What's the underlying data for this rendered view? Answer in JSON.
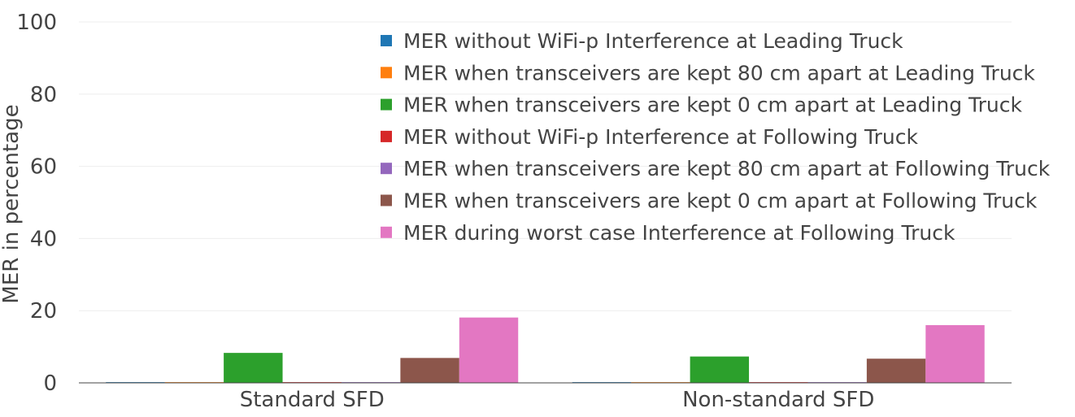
{
  "chart_data": {
    "type": "bar",
    "title": "",
    "xlabel": "",
    "ylabel": "MER in percentage",
    "ylim": [
      0,
      100
    ],
    "yticks": [
      0,
      20,
      40,
      60,
      80,
      100
    ],
    "grid": true,
    "legend_position": "top-right",
    "categories": [
      "Standard SFD",
      "Non-standard SFD"
    ],
    "series": [
      {
        "name": "MER without WiFi-p Interference at Leading Truck",
        "color": "#1f77b4",
        "values": [
          0.2,
          0.2
        ]
      },
      {
        "name": "MER when transceivers are kept 80 cm apart at Leading Truck",
        "color": "#ff7f0e",
        "values": [
          0.2,
          0.2
        ]
      },
      {
        "name": "MER when transceivers are kept 0 cm apart at Leading Truck",
        "color": "#2ca02c",
        "values": [
          8.3,
          7.3
        ]
      },
      {
        "name": "MER without WiFi-p Interference at Following Truck",
        "color": "#d62728",
        "values": [
          0.2,
          0.2
        ]
      },
      {
        "name": "MER when transceivers are kept 80 cm apart at Following Truck",
        "color": "#9467bd",
        "values": [
          0.2,
          0.2
        ]
      },
      {
        "name": "MER when transceivers are kept 0 cm apart at Following Truck",
        "color": "#8c564b",
        "values": [
          6.9,
          6.7
        ]
      },
      {
        "name": "MER during worst case Interference at Following Truck",
        "color": "#e377c2",
        "values": [
          18.1,
          16.0
        ]
      }
    ]
  }
}
